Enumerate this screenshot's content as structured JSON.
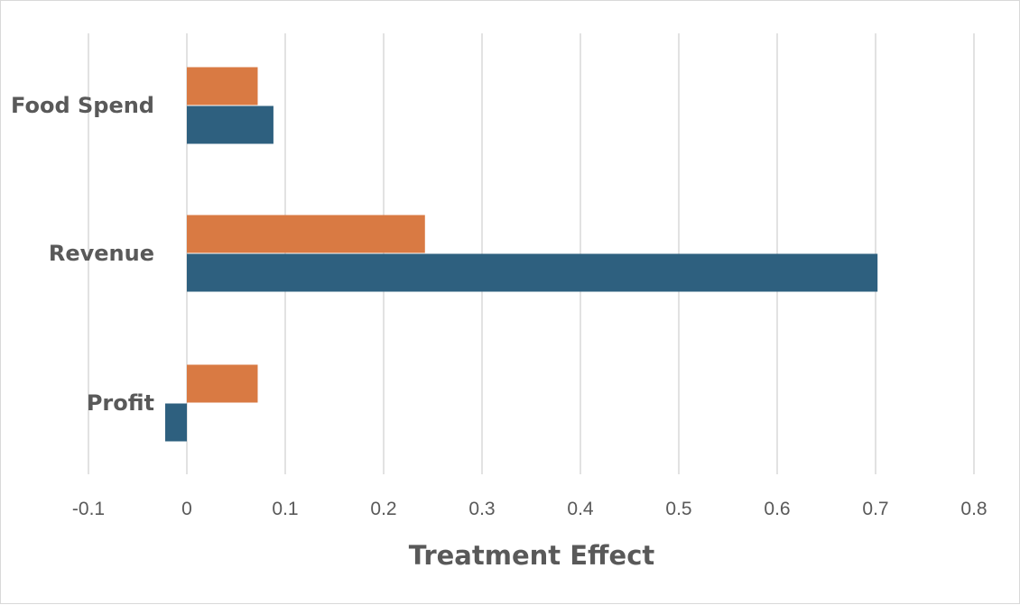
{
  "chart_data": {
    "type": "bar",
    "orientation": "horizontal",
    "categories": [
      "Food Spend",
      "Revenue",
      "Profit"
    ],
    "series": [
      {
        "color": "#D97A43",
        "values": [
          0.072,
          0.242,
          0.072
        ]
      },
      {
        "color": "#2E607F",
        "values": [
          0.088,
          0.702,
          -0.022
        ]
      }
    ],
    "xlabel": "Treatment Effect",
    "xlim": [
      -0.1,
      0.8
    ],
    "xticks": [
      -0.1,
      0,
      0.1,
      0.2,
      0.3,
      0.4,
      0.5,
      0.6,
      0.7,
      0.8
    ],
    "xtick_labels": [
      "-0.1",
      "0",
      "0.1",
      "0.2",
      "0.3",
      "0.4",
      "0.5",
      "0.6",
      "0.7",
      "0.8"
    ],
    "grid": "vertical",
    "legend": "none",
    "gridline_color": "#d9d9d9"
  }
}
